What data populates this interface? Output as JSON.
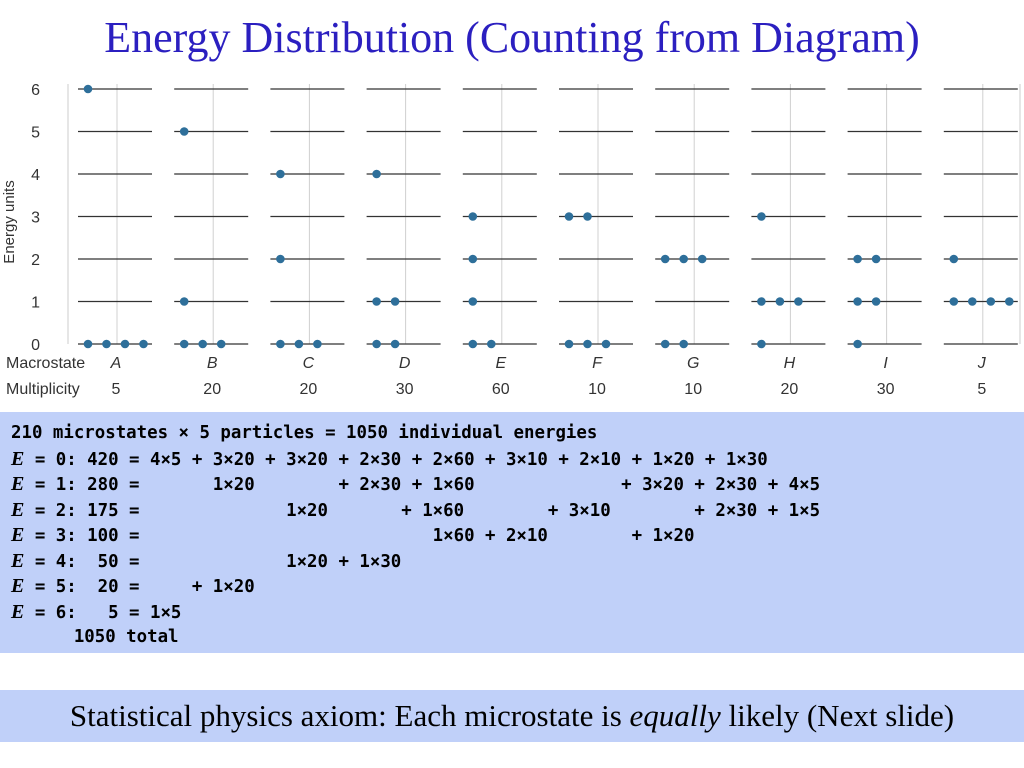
{
  "slide": {
    "title": "Energy Distribution (Counting from Diagram)"
  },
  "diagram": {
    "axis_label": "Energy units",
    "energy_levels": [
      "0",
      "1",
      "2",
      "3",
      "4",
      "5",
      "6"
    ],
    "row_labels": {
      "macrostate": "Macrostate",
      "multiplicity": "Multiplicity"
    },
    "macrostates": [
      {
        "label": "A",
        "multiplicity": "5",
        "particle_energies": [
          6,
          0,
          0,
          0,
          0
        ]
      },
      {
        "label": "B",
        "multiplicity": "20",
        "particle_energies": [
          5,
          1,
          0,
          0,
          0
        ]
      },
      {
        "label": "C",
        "multiplicity": "20",
        "particle_energies": [
          4,
          2,
          0,
          0,
          0
        ]
      },
      {
        "label": "D",
        "multiplicity": "30",
        "particle_energies": [
          4,
          1,
          1,
          0,
          0
        ]
      },
      {
        "label": "E",
        "multiplicity": "60",
        "particle_energies": [
          3,
          2,
          1,
          0,
          0
        ]
      },
      {
        "label": "F",
        "multiplicity": "10",
        "particle_energies": [
          3,
          3,
          0,
          0,
          0
        ]
      },
      {
        "label": "G",
        "multiplicity": "10",
        "particle_energies": [
          2,
          2,
          2,
          0,
          0
        ]
      },
      {
        "label": "H",
        "multiplicity": "20",
        "particle_energies": [
          3,
          1,
          1,
          1,
          0
        ]
      },
      {
        "label": "I",
        "multiplicity": "30",
        "particle_energies": [
          2,
          2,
          1,
          1,
          0
        ]
      },
      {
        "label": "J",
        "multiplicity": "5",
        "particle_energies": [
          2,
          1,
          1,
          1,
          1
        ]
      }
    ],
    "colors": {
      "dot": "#2e6f9a",
      "level_line": "#333333",
      "grid": "#d0d0d0",
      "label": "#333333"
    }
  },
  "calculation": {
    "lines": [
      {
        "symbol": "",
        "text": "210 microstates × 5 particles = 1050 individual energies"
      },
      {
        "symbol": "E",
        "text": " = 0: 420 = 4×5 + 3×20 + 3×20 + 2×30 + 2×60 + 3×10 + 2×10 + 1×20 + 1×30"
      },
      {
        "symbol": "E",
        "text": " = 1: 280 =       1×20        + 2×30 + 1×60              + 3×20 + 2×30 + 4×5"
      },
      {
        "symbol": "E",
        "text": " = 2: 175 =              1×20       + 1×60        + 3×10        + 2×30 + 1×5"
      },
      {
        "symbol": "E",
        "text": " = 3: 100 =                            1×60 + 2×10        + 1×20"
      },
      {
        "symbol": "E",
        "text": " = 4:  50 =              1×20 + 1×30"
      },
      {
        "symbol": "E",
        "text": " = 5:  20 =     + 1×20"
      },
      {
        "symbol": "E",
        "text": " = 6:   5 = 1×5"
      },
      {
        "symbol": "",
        "text": "      1050 total"
      }
    ]
  },
  "axiom": {
    "before": "Statistical physics axiom: Each microstate is ",
    "emphasis": "equally",
    "after": " likely (Next slide)"
  }
}
